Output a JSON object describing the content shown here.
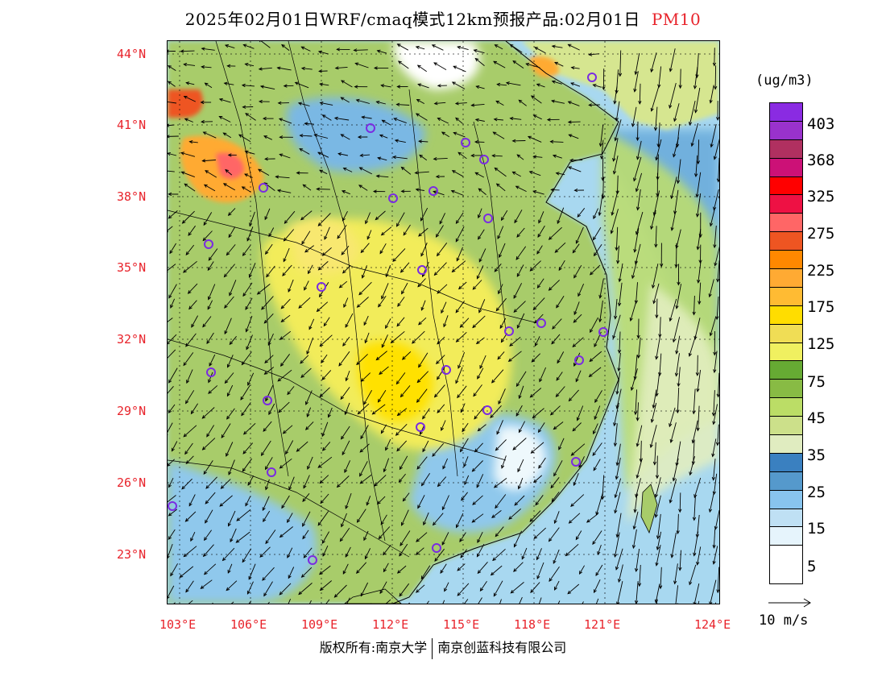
{
  "header": {
    "title": "2025年02月01日WRF/cmaq模式12km预报产品:02月01日",
    "pollutant": "PM10"
  },
  "axes": {
    "lat_labels": [
      "44°N",
      "41°N",
      "38°N",
      "35°N",
      "32°N",
      "29°N",
      "26°N",
      "23°N"
    ],
    "lon_labels": [
      "103°E",
      "106°E",
      "109°E",
      "112°E",
      "115°E",
      "118°E",
      "121°E",
      "124°E"
    ]
  },
  "legend": {
    "unit": "(ug/m3)",
    "colors": [
      "#8a2be2",
      "#9932cc",
      "#b03060",
      "#cc1177",
      "#ff0000",
      "#ee1144",
      "#ff6666",
      "#ee5522",
      "#ff8800",
      "#ffaa33",
      "#ffbb33",
      "#ffdd00",
      "#f0dd55",
      "#f0f060",
      "#66aa33",
      "#88bb44",
      "#bbdd66",
      "#cce08a",
      "#e0ecc0",
      "#3a80c0",
      "#5599cc",
      "#88c4ee",
      "#bfe0f4",
      "#e6f4fc",
      "#ffffff"
    ],
    "labels": [
      "403",
      "368",
      "325",
      "275",
      "225",
      "175",
      "125",
      "75",
      "45",
      "35",
      "25",
      "15",
      "5"
    ],
    "wind_ref": "10 m/s"
  },
  "footer": {
    "left": "版权所有:南京大学",
    "right": "南京创蓝科技有限公司"
  },
  "map": {
    "colors": {
      "sea": "#a8d8f0",
      "sea_deep": "#6aaedc",
      "frame": "#000000",
      "station": "#7a2be2"
    }
  }
}
